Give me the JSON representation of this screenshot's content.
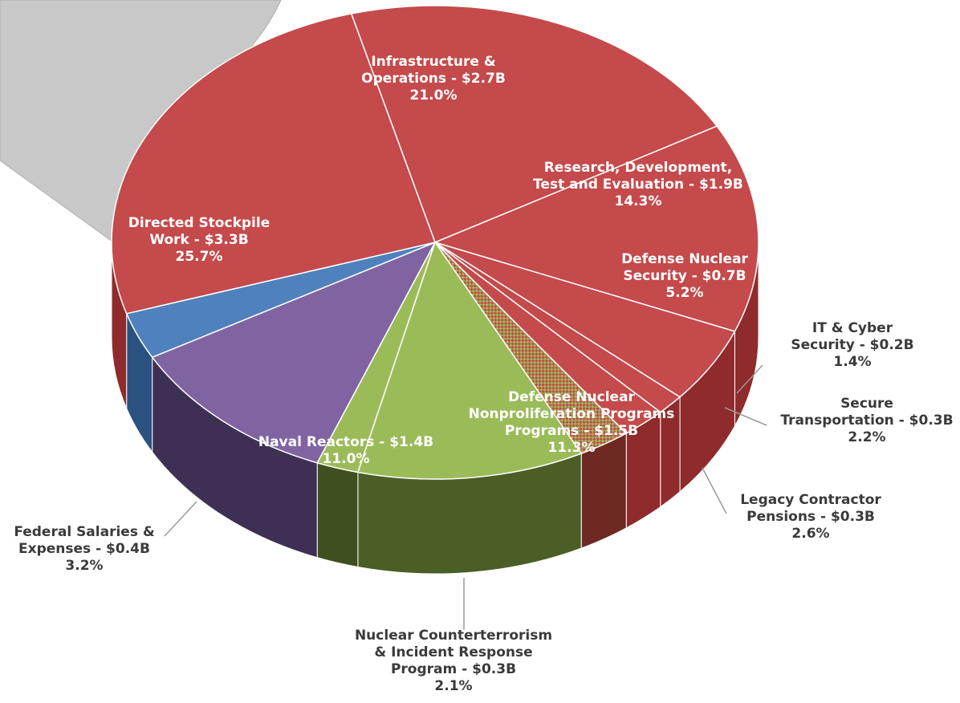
{
  "chart_data": {
    "type": "pie",
    "style": "3d-exploded-pie-of-pie",
    "legend": "none",
    "slices": [
      {
        "id": "infra",
        "lines": [
          "Infrastructure &",
          "Operations - $2.7B",
          "21.0%"
        ],
        "value": 2.7,
        "percent": 21.0,
        "color": "#c44a4b",
        "side": "#8f2b2c",
        "pattern": "",
        "label_inside": true
      },
      {
        "id": "rdte",
        "lines": [
          "Research, Development,",
          "Test and Evaluation - $1.9B",
          "14.3%"
        ],
        "value": 1.9,
        "percent": 14.3,
        "color": "#c44a4b",
        "side": "#8f2b2c",
        "pattern": "",
        "label_inside": true
      },
      {
        "id": "dns",
        "lines": [
          "Defense Nuclear",
          "Security - $0.7B",
          "5.2%"
        ],
        "value": 0.7,
        "percent": 5.2,
        "color": "#c44a4b",
        "side": "#8f2b2c",
        "pattern": "",
        "label_inside": true
      },
      {
        "id": "itcyber",
        "lines": [
          "IT & Cyber",
          "Security - $0.2B",
          "1.4%"
        ],
        "value": 0.2,
        "percent": 1.4,
        "color": "#c44a4b",
        "side": "#8f2b2c",
        "pattern": "",
        "label_inside": false
      },
      {
        "id": "securetrans",
        "lines": [
          "Secure",
          "Transportation - $0.3B",
          "2.2%"
        ],
        "value": 0.3,
        "percent": 2.2,
        "color": "#c44a4b",
        "side": "#8f2b2c",
        "pattern": "",
        "label_inside": false
      },
      {
        "id": "legacy",
        "lines": [
          "Legacy Contractor",
          "Pensions - $0.3B",
          "2.6%"
        ],
        "value": 0.3,
        "percent": 2.6,
        "color": "#c44a4b",
        "side": "#6e2a22",
        "pattern": "checker",
        "label_inside": false
      },
      {
        "id": "dnn",
        "lines": [
          "Defense Nuclear",
          "Nonproliferation Programs",
          "Programs - $1.5B",
          "11.3%"
        ],
        "value": 1.5,
        "percent": 11.3,
        "color": "#9bbb59",
        "side": "#4a5e26",
        "pattern": "",
        "label_inside": true
      },
      {
        "id": "nucct",
        "lines": [
          "Nuclear Counterterrorism",
          "& Incident Response",
          "Program - $0.3B",
          "2.1%"
        ],
        "value": 0.3,
        "percent": 2.1,
        "color": "#9bbb59",
        "side": "#3f5020",
        "pattern": "",
        "label_inside": false
      },
      {
        "id": "naval",
        "lines": [
          "Naval Reactors - $1.4B",
          "11.0%"
        ],
        "value": 1.4,
        "percent": 11.0,
        "color": "#8064a2",
        "side": "#3e2f55",
        "pattern": "",
        "label_inside": true
      },
      {
        "id": "fedsal",
        "lines": [
          "Federal Salaries &",
          "Expenses - $0.4B",
          "3.2%"
        ],
        "value": 0.4,
        "percent": 3.2,
        "color": "#4f81bd",
        "side": "#2a5180",
        "pattern": "",
        "label_inside": false
      },
      {
        "id": "dsw",
        "lines": [
          "Directed Stockpile",
          "Work - $3.3B",
          "25.7%"
        ],
        "value": 3.3,
        "percent": 25.7,
        "color": "#c44a4b",
        "side": "#8f2b2c",
        "pattern": "",
        "label_inside": true
      }
    ],
    "colors": {
      "red": "#c44a4b",
      "green": "#9bbb59",
      "purple": "#8064a2",
      "blue": "#4f81bd",
      "connector": "#c8c8c8"
    }
  }
}
